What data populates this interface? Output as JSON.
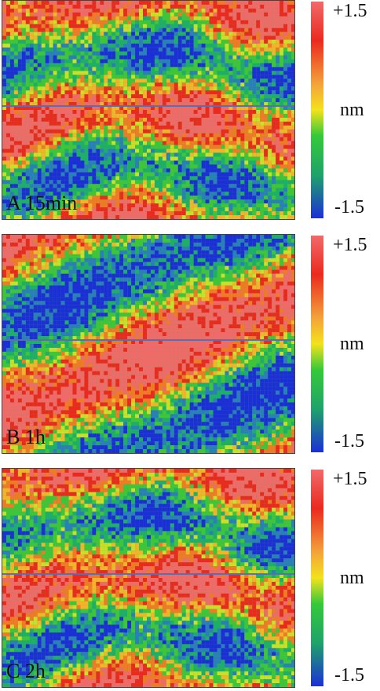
{
  "panels": [
    {
      "label": "A 15min",
      "seed": 7,
      "pattern": "horizontal"
    },
    {
      "label": "B 1h",
      "seed": 13,
      "pattern": "diagonal"
    },
    {
      "label": "C 2h",
      "seed": 29,
      "pattern": "horizontal"
    }
  ],
  "colorbar": {
    "max_label": "+1.5",
    "unit": "nm",
    "min_label": "-1.5",
    "colors": {
      "high": "#ea2a1f",
      "mid": "#f3e21d",
      "low": "#1c2fd6",
      "green": "#35c93a"
    }
  }
}
